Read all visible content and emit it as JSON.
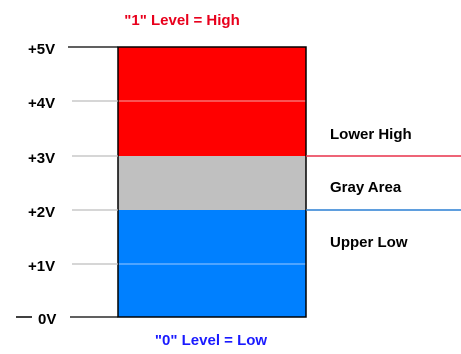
{
  "title_high": "\"1\"  Level = High",
  "title_low": "\"0\" Level = Low",
  "voltage_labels": [
    "+5V",
    "+4V",
    "+3V",
    "+2V",
    "+1V",
    "0V"
  ],
  "zone_labels": {
    "lower_high": "Lower High",
    "gray_area": "Gray Area",
    "upper_low": "Upper Low"
  },
  "colors": {
    "high": "#ff0000",
    "gray": "#c0c0c0",
    "low": "#0080ff",
    "title_high": "#e8001c",
    "title_low": "#1a1aff",
    "threshold_high": "#e8304a",
    "threshold_low": "#2a7fd4"
  }
}
